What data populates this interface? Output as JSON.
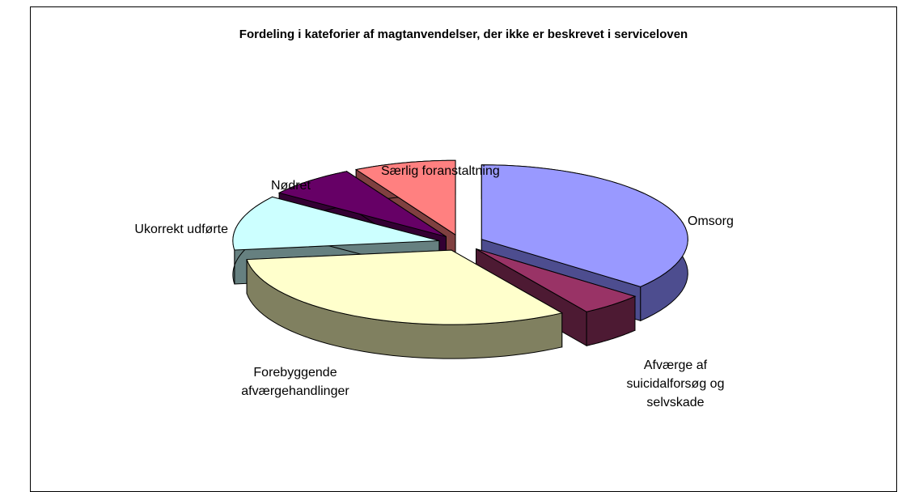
{
  "chart_data": {
    "type": "pie3d",
    "title": "Fordeling i kateforier af magtanvendelser, der ikke er beskrevet i serviceloven",
    "categories": [
      "Omsorg",
      "Afværge af suicidalforsøg og selvskade",
      "Forebyggende afværgehandlinger",
      "Ukorrekt udførte",
      "Nødret",
      "Særlig foranstaltning"
    ],
    "values": [
      36,
      5,
      32,
      12,
      7,
      8
    ],
    "colors": [
      "#9999ff",
      "#993366",
      "#ffffcc",
      "#ccffff",
      "#660066",
      "#ff8080"
    ],
    "side_colors": [
      "#4d4d8f",
      "#4d1a33",
      "#808060",
      "#668080",
      "#330033",
      "#804040"
    ],
    "exploded": true
  }
}
